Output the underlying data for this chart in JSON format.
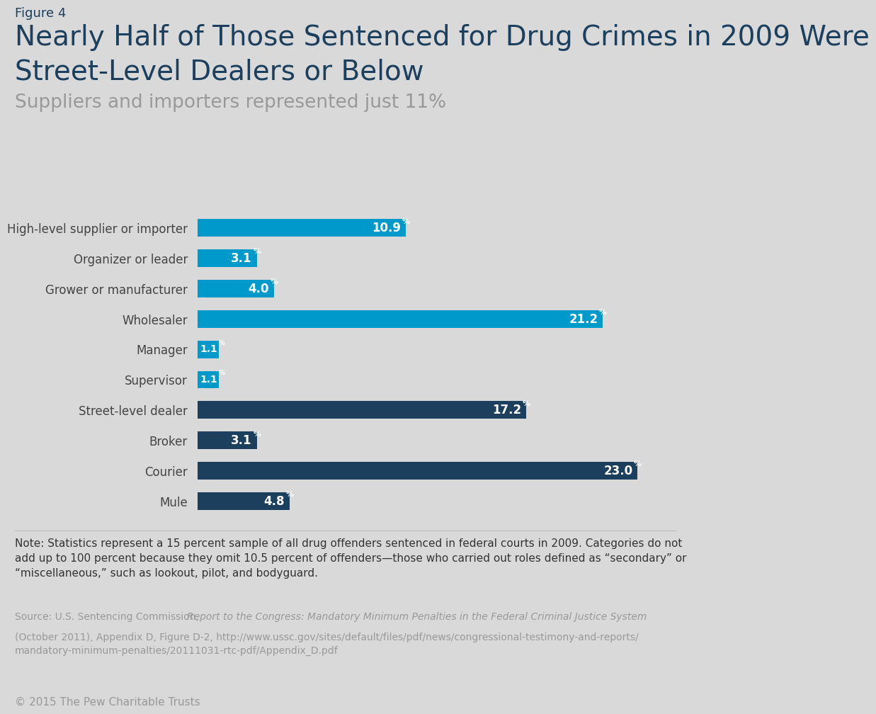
{
  "figure_label": "Figure 4",
  "title_line1": "Nearly Half of Those Sentenced for Drug Crimes in 2009 Were",
  "title_line2": "Street-Level Dealers or Below",
  "subtitle": "Suppliers and importers represented just 11%",
  "categories": [
    "High-level supplier or importer",
    "Organizer or leader",
    "Grower or manufacturer",
    "Wholesaler",
    "Manager",
    "Supervisor",
    "Street-level dealer",
    "Broker",
    "Courier",
    "Mule"
  ],
  "values": [
    10.9,
    3.1,
    4.0,
    21.2,
    1.1,
    1.1,
    17.2,
    3.1,
    23.0,
    4.8
  ],
  "colors": [
    "#0099CC",
    "#0099CC",
    "#0099CC",
    "#0099CC",
    "#0099CC",
    "#0099CC",
    "#1C3F5E",
    "#1C3F5E",
    "#1C3F5E",
    "#1C3F5E"
  ],
  "bar_value_strings": [
    "10.9",
    "3.1",
    "4.0",
    "21.2",
    "1.1",
    "1.1",
    "17.2",
    "3.1",
    "23.0",
    "4.8"
  ],
  "background_color": "#D9D9D9",
  "title_color": "#1C3F5E",
  "figure_label_color": "#1C3F5E",
  "subtitle_color": "#999999",
  "note_color": "#333333",
  "source_color": "#999999",
  "copyright_color": "#999999",
  "note_text": "Note: Statistics represent a 15 percent sample of all drug offenders sentenced in federal courts in 2009. Categories do not\nadd up to 100 percent because they omit 10.5 percent of offenders—those who carried out roles defined as “secondary” or\n“miscellaneous,” such as lookout, pilot, and bodyguard.",
  "source_text_normal": "Source: U.S. Sentencing Commission, ",
  "source_text_italic": "Report to the Congress: Mandatory Minimum Penalties in the Federal Criminal Justice System",
  "source_text_rest": "\n(October 2011), Appendix D, Figure D-2, http://www.ussc.gov/sites/default/files/pdf/news/congressional-testimony-and-reports/\nmandatory-minimum-penalties/20111031-rtc-pdf/Appendix_D.pdf",
  "copyright_text": "© 2015 The Pew Charitable Trusts",
  "xlim": [
    0,
    25
  ],
  "label_fontsize": 12,
  "value_fontsize": 12,
  "title_fontsize": 28,
  "figure_label_fontsize": 13,
  "subtitle_fontsize": 19,
  "note_fontsize": 11,
  "source_fontsize": 10,
  "copyright_fontsize": 11
}
